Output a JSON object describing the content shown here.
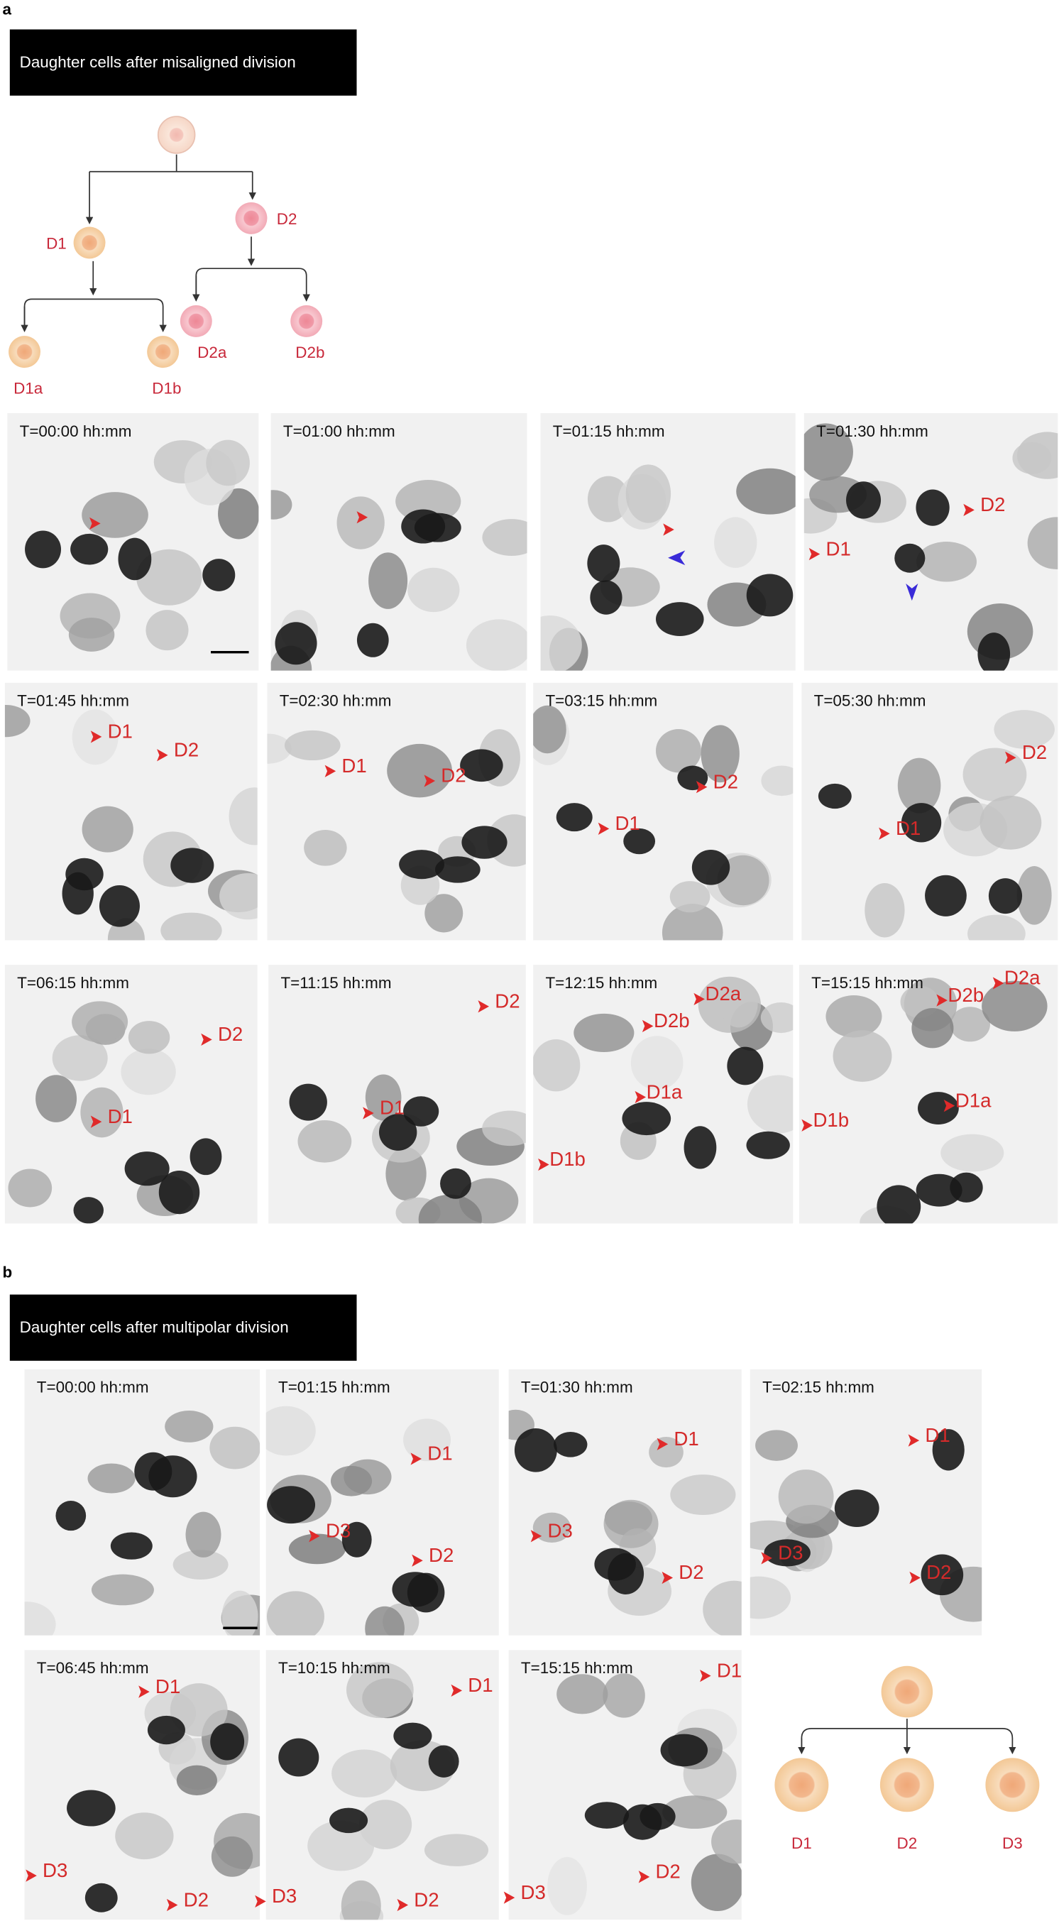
{
  "panels": [
    {
      "letter": "a",
      "header": "Daughter cells after misaligned division",
      "tree": [
        "D1",
        "D2",
        "D1a",
        "D1b",
        "D2a",
        "D2b"
      ],
      "frames": [
        {
          "time": "T=00:00 hh:mm"
        },
        {
          "time": "T=01:00 hh:mm"
        },
        {
          "time": "T=01:15 hh:mm"
        },
        {
          "time": "T=01:30 hh:mm",
          "labels": [
            "D1",
            "D2"
          ]
        },
        {
          "time": "T=01:45 hh:mm",
          "labels": [
            "D1",
            "D2"
          ]
        },
        {
          "time": "T=02:30 hh:mm",
          "labels": [
            "D1",
            "D2"
          ]
        },
        {
          "time": "T=03:15 hh:mm",
          "labels": [
            "D1",
            "D2"
          ]
        },
        {
          "time": "T=05:30 hh:mm",
          "labels": [
            "D1",
            "D2"
          ]
        },
        {
          "time": "T=06:15 hh:mm",
          "labels": [
            "D2",
            "D1"
          ]
        },
        {
          "time": "T=11:15 hh:mm",
          "labels": [
            "D2",
            "D1"
          ]
        },
        {
          "time": "T=12:15 hh:mm",
          "labels": [
            "D2a",
            "D2b",
            "D1a",
            "D1b"
          ]
        },
        {
          "time": "T=15:15 hh:mm",
          "labels": [
            "D2b",
            "D2a",
            "D1a",
            "D1b"
          ]
        }
      ]
    },
    {
      "letter": "b",
      "header": "Daughter cells after multipolar division",
      "tree": [
        "D1",
        "D2",
        "D3"
      ],
      "frames": [
        {
          "time": "T=00:00 hh:mm"
        },
        {
          "time": "T=01:15 hh:mm",
          "labels": [
            "D1",
            "D3",
            "D2"
          ]
        },
        {
          "time": "T=01:30 hh:mm",
          "labels": [
            "D1",
            "D3",
            "D2"
          ]
        },
        {
          "time": "T=02:15 hh:mm",
          "labels": [
            "D1",
            "D3",
            "D2"
          ]
        },
        {
          "time": "T=06:45 hh:mm",
          "labels": [
            "D1",
            "D3",
            "D2"
          ]
        },
        {
          "time": "T=10:15 hh:mm",
          "labels": [
            "D1",
            "D3",
            "D2"
          ]
        },
        {
          "time": "T=15:15 hh:mm",
          "labels": [
            "D1",
            "D3",
            "D2"
          ]
        }
      ]
    }
  ]
}
